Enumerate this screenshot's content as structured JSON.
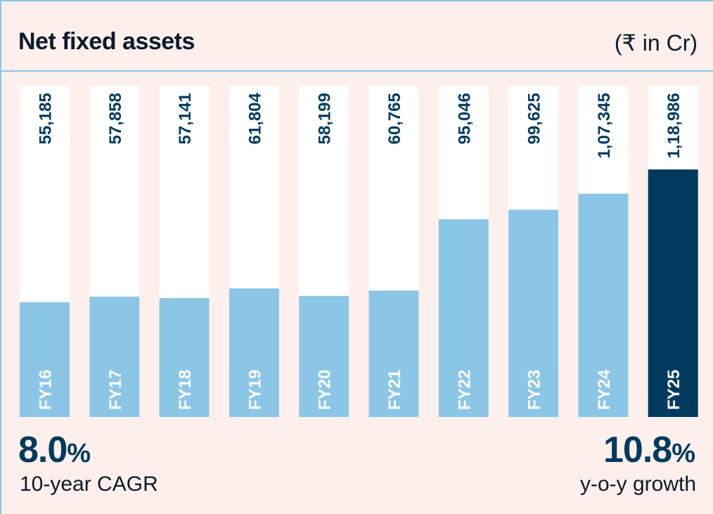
{
  "header": {
    "title": "Net fixed assets",
    "unit": "(₹ in Cr)"
  },
  "colors": {
    "background": "#fdf0ec",
    "bar_default": "#8cc6e7",
    "bar_highlight": "#013a5e",
    "bar_track": "#ffffff",
    "value_text": "#013a5e",
    "category_text": "#ffffff"
  },
  "chart_data": {
    "type": "bar",
    "categories": [
      "FY16",
      "FY17",
      "FY18",
      "FY19",
      "FY20",
      "FY21",
      "FY22",
      "FY23",
      "FY24",
      "FY25"
    ],
    "values": [
      55185,
      57858,
      57141,
      61804,
      58199,
      60765,
      95046,
      99625,
      107345,
      118986
    ],
    "value_labels": [
      "55,185",
      "57,858",
      "57,141",
      "61,804",
      "58,199",
      "60,765",
      "95,046",
      "99,625",
      "1,07,345",
      "1,18,986"
    ],
    "highlight_index": 9,
    "title": "Net fixed assets",
    "ylabel": "",
    "xlabel": ""
  },
  "stats": {
    "cagr": {
      "value": "8.0",
      "suffix": "%",
      "label": "10-year CAGR"
    },
    "yoy": {
      "value": "10.8",
      "suffix": "%",
      "label": "y-o-y growth"
    }
  }
}
